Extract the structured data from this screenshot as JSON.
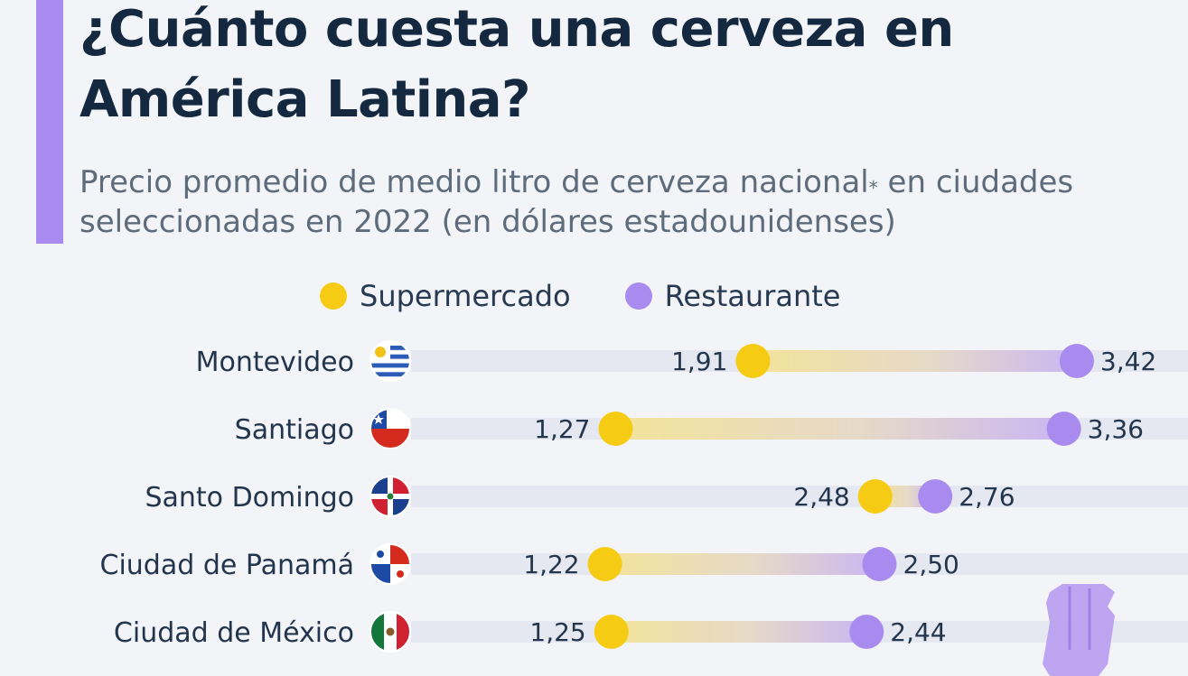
{
  "title": "¿Cuánto cuesta una cerveza en América Latina?",
  "subtitle": "Precio promedio de medio litro de cerveza nacional",
  "subtitle_mark": "*",
  "subtitle_end": " en ciudades seleccionadas en 2022 (en dólares estadounidenses)",
  "legend": [
    {
      "label": "Supermercado",
      "color": "#f5cb14"
    },
    {
      "label": "Restaurante",
      "color": "#a98bef"
    }
  ],
  "colors": {
    "accent": "#a98bef",
    "track": "#e5e8f1",
    "supermarket": "#f5cb14",
    "restaurant": "#a98bef"
  },
  "chart_data": {
    "type": "dumbbell",
    "title": "¿Cuánto cuesta una cerveza en América Latina?",
    "categories": [
      "Montevideo",
      "Santiago",
      "Santo Domingo",
      "Ciudad de Panamá",
      "Ciudad de México"
    ],
    "flags": [
      "uruguay-flag-icon",
      "chile-flag-icon",
      "dominican-republic-flag-icon",
      "panama-flag-icon",
      "mexico-flag-icon"
    ],
    "series": [
      {
        "name": "Supermercado",
        "values": [
          1.91,
          1.27,
          2.48,
          1.22,
          1.25
        ],
        "labels": [
          "1,91",
          "1,27",
          "2,48",
          "1,22",
          "1,25"
        ]
      },
      {
        "name": "Restaurante",
        "values": [
          3.42,
          3.36,
          2.76,
          2.5,
          2.44
        ],
        "labels": [
          "3,42",
          "3,36",
          "2,76",
          "2,50",
          "2,44"
        ]
      }
    ]
  }
}
